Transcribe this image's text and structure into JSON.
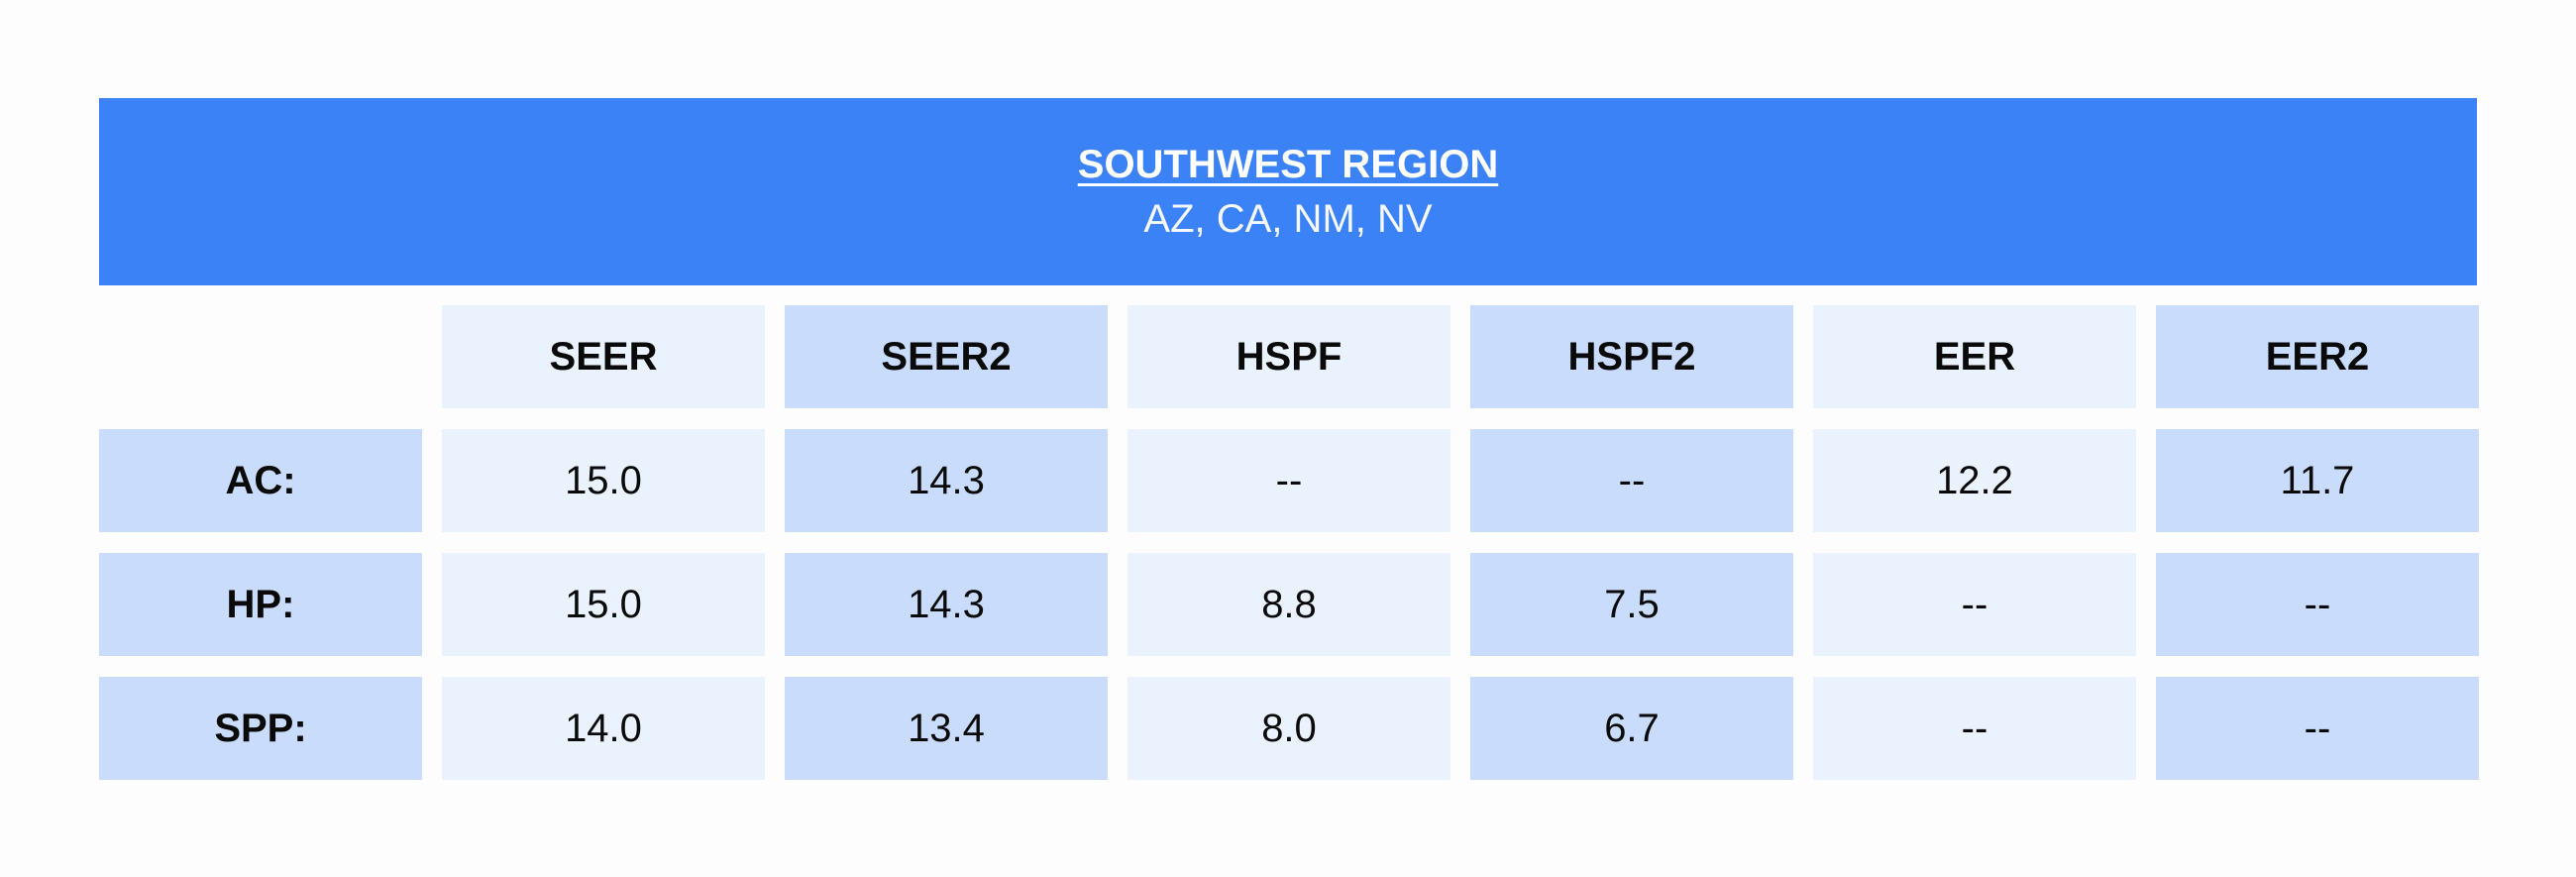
{
  "header": {
    "title": "SOUTHWEST REGION",
    "subtitle": "AZ, CA, NM, NV"
  },
  "table": {
    "columns": [
      "SEER",
      "SEER2",
      "HSPF",
      "HSPF2",
      "EER",
      "EER2"
    ],
    "rows": [
      {
        "label": "AC:",
        "values": [
          "15.0",
          "14.3",
          "--",
          "--",
          "12.2",
          "11.7"
        ]
      },
      {
        "label": "HP:",
        "values": [
          "15.0",
          "14.3",
          "8.8",
          "7.5",
          "--",
          "--"
        ]
      },
      {
        "label": "SPP:",
        "values": [
          "14.0",
          "13.4",
          "8.0",
          "6.7",
          "--",
          "--"
        ]
      }
    ]
  },
  "colors": {
    "banner": "#3b82f6",
    "cell_light": "#eaf2fe",
    "cell_dark": "#c9dcfc"
  }
}
